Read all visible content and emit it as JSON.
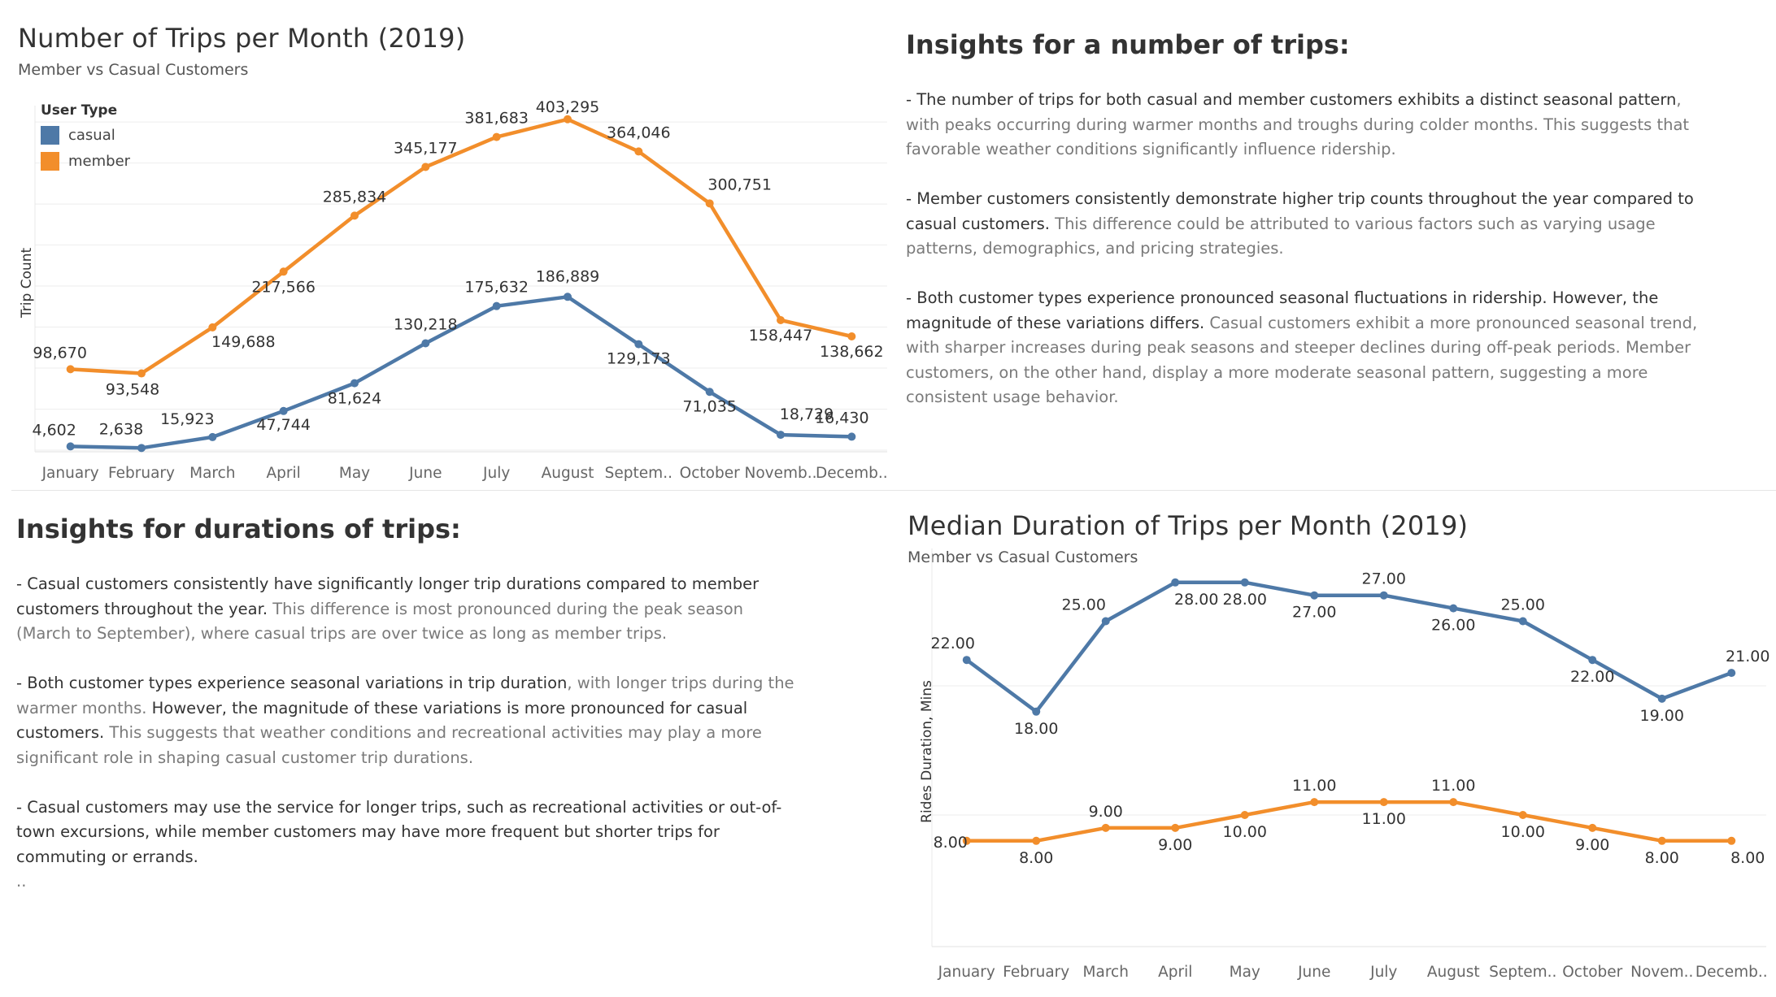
{
  "colors": {
    "casual": "#4e79a7",
    "member": "#f28e2b",
    "grid": "#eeeeee",
    "axis_text": "#666666"
  },
  "trips_panel": {
    "title": "Number of Trips per Month (2019)",
    "subtitle": "Member vs Casual Customers",
    "legend_title": "User Type",
    "legend": [
      "casual",
      "member"
    ]
  },
  "durations_panel": {
    "title": "Median Duration of Trips per Month (2019)",
    "subtitle": "Member vs Casual Customers"
  },
  "trip_insights": {
    "heading": "Insights for a number of trips:",
    "p1_bold": " - The number of trips for both casual and member customers exhibits a distinct seasonal pattern",
    "p1_rest": ", with peaks occurring during warmer months and troughs during colder months. This suggests that favorable weather conditions significantly influence ridership.",
    "p2_bold": " - Member customers consistently demonstrate higher trip counts throughout the year compared to casual customers.",
    "p2_rest": " This difference could be attributed to various factors such as varying usage patterns, demographics, and pricing strategies.",
    "p3_bold": " - Both customer types experience pronounced seasonal fluctuations in ridership. However, the magnitude of these variations differs.",
    "p3_rest": " Casual customers exhibit a more pronounced seasonal trend, with sharper increases during peak seasons and steeper declines during off-peak periods. Member customers, on the other hand, display a more moderate seasonal pattern, suggesting a more consistent usage behavior."
  },
  "duration_insights": {
    "heading": "Insights for durations of trips:",
    "p1_bold": " - Casual customers consistently have significantly longer trip durations compared to member customers throughout the year.",
    "p1_rest": " This difference is most pronounced during the peak season (March to September), where casual trips are over twice as long as member trips.",
    "p2_bold_a": " - Both customer types experience seasonal variations in trip duration",
    "p2_rest_a": ", with longer trips during the warmer months.",
    "p2_bold_b": " However, the magnitude of these variations is more pronounced for casual customers.",
    "p2_rest_b": " This suggests that weather conditions and recreational activities may play a more significant role in shaping casual customer trip durations.",
    "p3_bold": " - Casual customers may use the service for longer trips, such as recreational activities or out-of-town excursions, while member customers may have more frequent but shorter trips for commuting or errands.",
    "tail": ".."
  },
  "chart_data": [
    {
      "type": "line",
      "title": "Number of Trips per Month (2019)",
      "subtitle": "Member vs Casual Customers",
      "ylabel": "Trip Count",
      "xlabel": "",
      "x_tick_labels": [
        "January",
        "February",
        "March",
        "April",
        "May",
        "June",
        "July",
        "August",
        "Septem..",
        "October",
        "Novemb..",
        "Decemb.."
      ],
      "categories": [
        "January",
        "February",
        "March",
        "April",
        "May",
        "June",
        "July",
        "August",
        "September",
        "October",
        "November",
        "December"
      ],
      "ylim": [
        0,
        410000
      ],
      "grid": true,
      "legend": "top-left",
      "series": [
        {
          "name": "casual",
          "values": [
            4602,
            2638,
            15923,
            47744,
            81624,
            130218,
            175632,
            186889,
            129173,
            71035,
            18729,
            16430
          ],
          "labels": [
            "4,602",
            "2,638",
            "15,923",
            "47,744",
            "81,624",
            "130,218",
            "175,632",
            "186,889",
            "129,173",
            "71,035",
            "18,729",
            "16,430"
          ]
        },
        {
          "name": "member",
          "values": [
            98670,
            93548,
            149688,
            217566,
            285834,
            345177,
            381683,
            403295,
            364046,
            300751,
            158447,
            138662
          ],
          "labels": [
            "98,670",
            "93,548",
            "149,688",
            "217,566",
            "285,834",
            "345,177",
            "381,683",
            "403,295",
            "364,046",
            "300,751",
            "158,447",
            "138,662"
          ]
        }
      ]
    },
    {
      "type": "line",
      "title": "Median Duration of Trips per Month (2019)",
      "subtitle": "Member vs Casual Customers",
      "ylabel": "Rides Duration, Mins",
      "xlabel": "",
      "x_tick_labels": [
        "January",
        "February",
        "March",
        "April",
        "May",
        "June",
        "July",
        "August",
        "Septem..",
        "October",
        "Novem..",
        "Decemb.."
      ],
      "categories": [
        "January",
        "February",
        "March",
        "April",
        "May",
        "June",
        "July",
        "August",
        "September",
        "October",
        "November",
        "December"
      ],
      "ylim": [
        0,
        30
      ],
      "grid": true,
      "series": [
        {
          "name": "casual",
          "values": [
            22,
            18,
            25,
            28,
            28,
            27,
            27,
            26,
            25,
            22,
            19,
            21
          ],
          "labels": [
            "22.00",
            "18.00",
            "25.00",
            "28.00",
            "28.00",
            "27.00",
            "27.00",
            "26.00",
            "25.00",
            "22.00",
            "19.00",
            "21.00"
          ]
        },
        {
          "name": "member",
          "values": [
            8,
            8,
            9,
            9,
            10,
            11,
            11,
            11,
            10,
            9,
            8,
            8
          ],
          "labels": [
            "8.00",
            "8.00",
            "9.00",
            "9.00",
            "10.00",
            "11.00",
            "11.00",
            "11.00",
            "10.00",
            "9.00",
            "8.00",
            "8.00"
          ]
        }
      ]
    }
  ]
}
